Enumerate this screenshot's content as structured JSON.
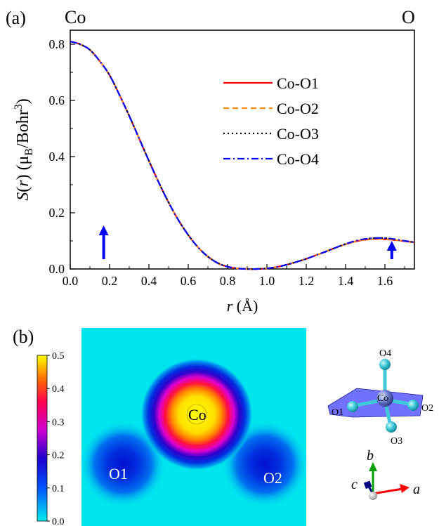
{
  "panel_a": {
    "label": "(a)",
    "corner_left": "Co",
    "corner_right": "O",
    "ylabel_parts": [
      "S",
      "(",
      "r",
      ") (μ",
      "B",
      "/Bohr",
      "3",
      ")"
    ],
    "xlabel_parts": [
      "r",
      " (Å)"
    ]
  },
  "chart_data": {
    "type": "line",
    "title": "",
    "xlabel": "r (Å)",
    "ylabel": "S(r) (μB/Bohr3)",
    "xlim": [
      0,
      1.75
    ],
    "ylim": [
      0,
      0.85
    ],
    "x_ticks": [
      "0.0",
      "0.2",
      "0.4",
      "0.6",
      "0.8",
      "1.0",
      "1.2",
      "1.4",
      "1.6"
    ],
    "y_ticks": [
      "0.0",
      "0.2",
      "0.4",
      "0.6",
      "0.8"
    ],
    "legend_position": "upper-right",
    "x": [
      0.0,
      0.05,
      0.1,
      0.15,
      0.2,
      0.25,
      0.3,
      0.35,
      0.4,
      0.45,
      0.5,
      0.55,
      0.6,
      0.65,
      0.7,
      0.75,
      0.8,
      0.85,
      0.9,
      0.95,
      1.0,
      1.05,
      1.1,
      1.15,
      1.2,
      1.25,
      1.3,
      1.35,
      1.4,
      1.45,
      1.5,
      1.55,
      1.6,
      1.65,
      1.7,
      1.75
    ],
    "series": [
      {
        "name": "Co-O1",
        "color": "#ff0000",
        "dash": "solid",
        "values": [
          0.81,
          0.8,
          0.78,
          0.74,
          0.69,
          0.62,
          0.545,
          0.465,
          0.385,
          0.308,
          0.237,
          0.174,
          0.121,
          0.077,
          0.044,
          0.021,
          0.008,
          0.002,
          0.0,
          0.0,
          0.002,
          0.007,
          0.015,
          0.025,
          0.036,
          0.049,
          0.062,
          0.076,
          0.088,
          0.098,
          0.104,
          0.107,
          0.106,
          0.103,
          0.099,
          0.095
        ]
      },
      {
        "name": "Co-O2",
        "color": "#ff8c1a",
        "dash": "dashed",
        "values": [
          0.81,
          0.8,
          0.78,
          0.74,
          0.69,
          0.62,
          0.545,
          0.465,
          0.385,
          0.308,
          0.237,
          0.174,
          0.121,
          0.077,
          0.044,
          0.021,
          0.008,
          0.002,
          0.0,
          0.0,
          0.002,
          0.007,
          0.015,
          0.025,
          0.036,
          0.049,
          0.062,
          0.076,
          0.088,
          0.098,
          0.104,
          0.107,
          0.106,
          0.103,
          0.099,
          0.095
        ]
      },
      {
        "name": "Co-O3",
        "color": "#000000",
        "dash": "dotted",
        "values": [
          0.81,
          0.8,
          0.78,
          0.74,
          0.69,
          0.62,
          0.545,
          0.465,
          0.385,
          0.308,
          0.237,
          0.174,
          0.121,
          0.077,
          0.044,
          0.021,
          0.008,
          0.002,
          0.0,
          0.0,
          0.002,
          0.007,
          0.015,
          0.025,
          0.036,
          0.049,
          0.062,
          0.076,
          0.089,
          0.1,
          0.107,
          0.11,
          0.11,
          0.106,
          0.1,
          0.095
        ]
      },
      {
        "name": "Co-O4",
        "color": "#0000ff",
        "dash": "dashdot",
        "values": [
          0.81,
          0.8,
          0.78,
          0.74,
          0.69,
          0.62,
          0.545,
          0.465,
          0.385,
          0.308,
          0.237,
          0.174,
          0.121,
          0.077,
          0.044,
          0.021,
          0.008,
          0.002,
          0.0,
          0.0,
          0.002,
          0.007,
          0.015,
          0.025,
          0.036,
          0.049,
          0.062,
          0.076,
          0.089,
          0.1,
          0.107,
          0.11,
          0.11,
          0.106,
          0.1,
          0.095
        ]
      }
    ],
    "annotations": [
      {
        "type": "arrow",
        "x": 0.17,
        "y_from": 0.035,
        "y_to": 0.15,
        "color": "#0000ff"
      },
      {
        "type": "arrow",
        "x": 1.635,
        "y_from": 0.035,
        "y_to": 0.095,
        "color": "#0000ff"
      }
    ]
  },
  "panel_b": {
    "label": "(b)",
    "colorbar_ticks": [
      "0.5",
      "0.4",
      "0.3",
      "0.2",
      "0.1",
      "0.0"
    ],
    "colorbar_range": [
      0.0,
      0.5
    ],
    "map_labels": {
      "co": "Co",
      "o1": "O1",
      "o2": "O2"
    },
    "background_color": "#00e5ee",
    "structure_labels": {
      "o4": "O4",
      "co": "Co",
      "o1": "O1",
      "o2": "O2",
      "o3": "O3"
    },
    "axes_labels": {
      "a": "a",
      "b": "b",
      "c": "c"
    },
    "colors": {
      "plane": "#4d4dff",
      "oxygen": "#40c8d8",
      "cobalt": "#6f7fd0",
      "axis_a": "#ff0000",
      "axis_b": "#00a000",
      "axis_c": "#000080"
    }
  }
}
